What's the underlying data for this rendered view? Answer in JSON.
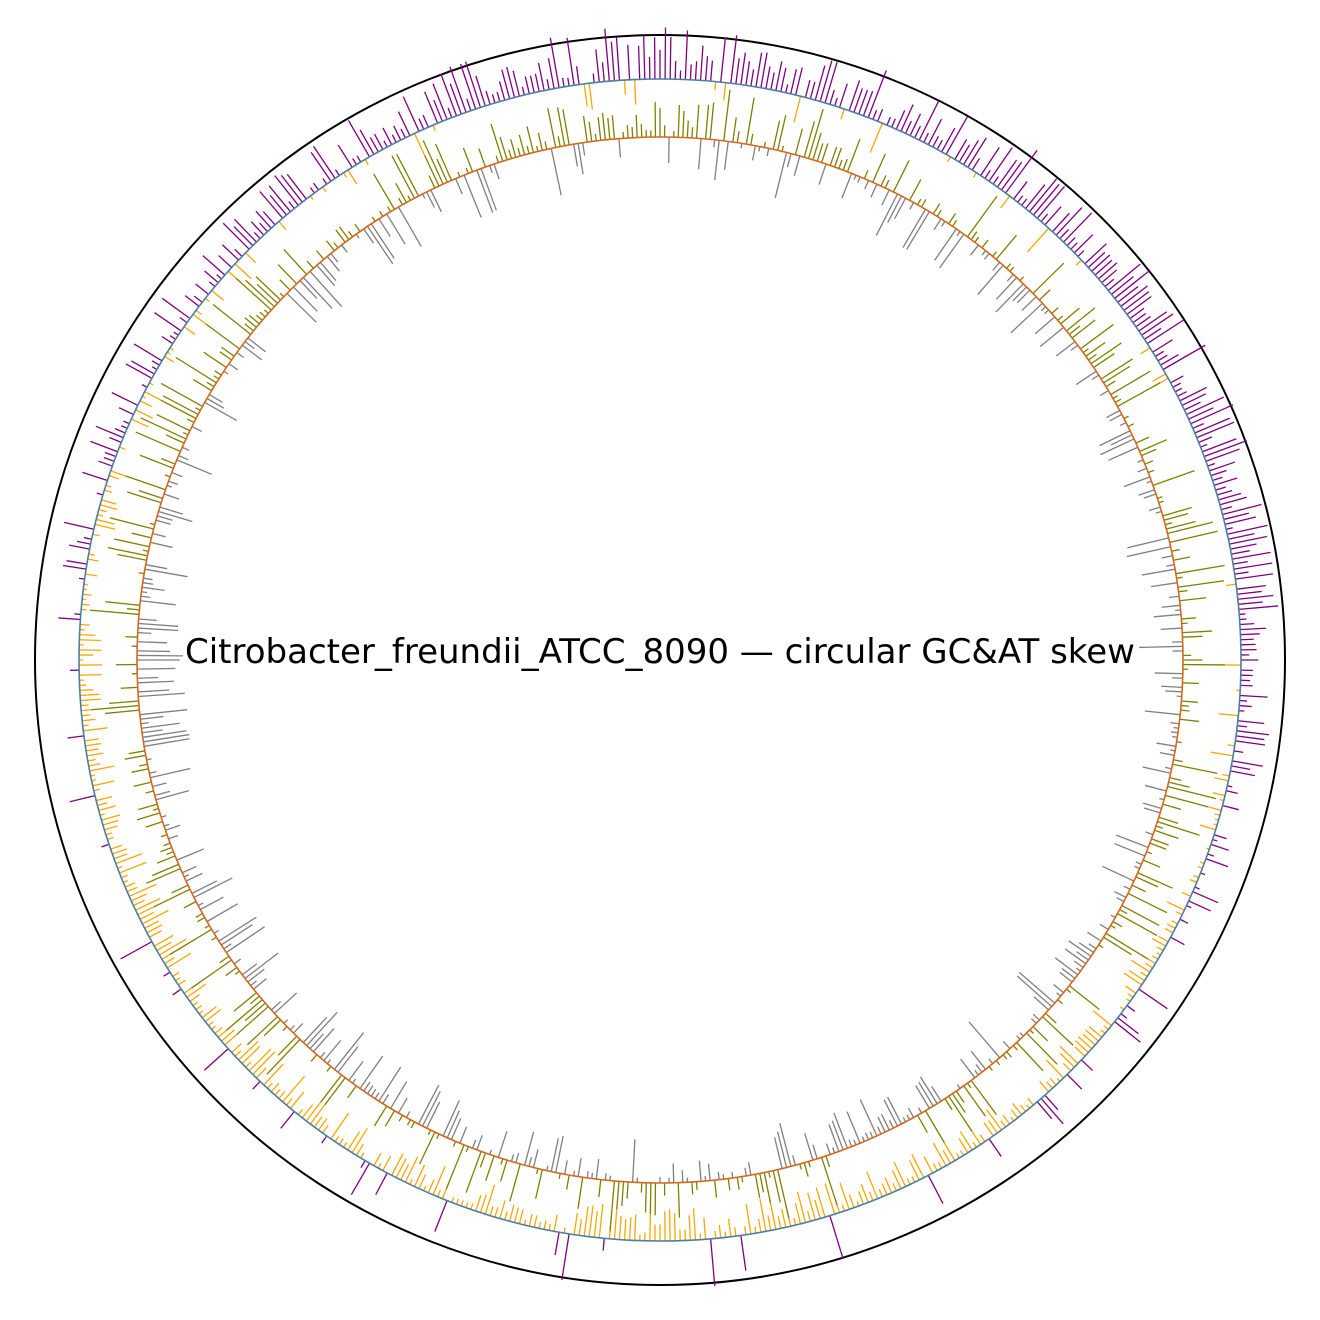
{
  "chart_data": {
    "type": "circular_skew",
    "title": "Citrobacter_freundii_ATCC_8090 — circular GC&AT skew",
    "tracks": [
      {
        "track": "outer",
        "baseline_color": "#4a7fa3",
        "positive_color": "#800080",
        "negative_color": "#ffa500",
        "summary": "positive (inward-to-outward) values dominate the upper half, negative values dominate the lower half",
        "num_bins": 720,
        "value_range": [
          -1,
          1
        ]
      },
      {
        "track": "inner",
        "baseline_color": "#d2691e",
        "positive_color": "#808000",
        "negative_color": "#808080",
        "summary": "alternating positive/negative bars all around the circle",
        "num_bins": 720,
        "value_range": [
          -1,
          1
        ]
      }
    ],
    "grid": false,
    "legend": "none",
    "axes": "none"
  }
}
